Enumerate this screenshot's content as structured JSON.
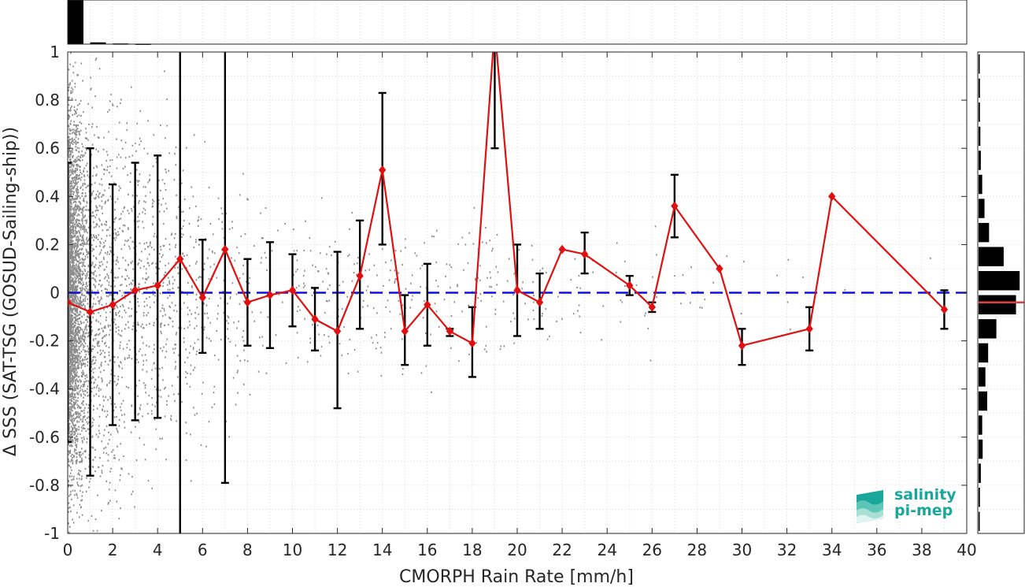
{
  "chart_data": {
    "type": "line",
    "xlabel": "CMORPH Rain Rate [mm/h]",
    "ylabel": "Δ SSS (SAT-TSG (GOSUD-Sailing-ship))",
    "xlim": [
      0,
      40
    ],
    "ylim": [
      -1,
      1
    ],
    "x_ticks": [
      "0",
      "2",
      "4",
      "6",
      "8",
      "10",
      "12",
      "14",
      "16",
      "18",
      "20",
      "22",
      "24",
      "26",
      "28",
      "30",
      "32",
      "34",
      "36",
      "38",
      "40"
    ],
    "y_ticks": [
      "-1",
      "-0.8",
      "-0.6",
      "-0.4",
      "-0.2",
      "0",
      "0.2",
      "0.4",
      "0.6",
      "0.8",
      "1"
    ],
    "grid": true,
    "reference_line": {
      "y": 0,
      "style": "dashed",
      "color": "#1010dd"
    },
    "series": [
      {
        "color": "#e01010",
        "marker": "diamond",
        "x": [
          0,
          1,
          2,
          3,
          4,
          5,
          6,
          7,
          8,
          9,
          10,
          11,
          12,
          13,
          14,
          15,
          16,
          17,
          18,
          19,
          20,
          21,
          22,
          23,
          25,
          26,
          27,
          29,
          30,
          33,
          34,
          39
        ],
        "y": [
          -0.04,
          -0.08,
          -0.05,
          0.01,
          0.03,
          0.14,
          -0.02,
          0.18,
          -0.04,
          -0.01,
          0.01,
          -0.11,
          -0.16,
          0.07,
          0.51,
          -0.16,
          -0.05,
          -0.16,
          -0.21,
          1.1,
          0.01,
          -0.04,
          0.18,
          0.16,
          0.03,
          -0.06,
          0.36,
          0.1,
          -0.22,
          -0.15,
          0.4,
          -0.07
        ],
        "err_lo": [
          -0.62,
          -0.76,
          -0.55,
          -0.53,
          -0.52,
          -1.0,
          -0.25,
          -0.79,
          -0.22,
          -0.23,
          -0.14,
          -0.24,
          -0.48,
          -0.15,
          0.2,
          -0.3,
          -0.22,
          -0.18,
          -0.35,
          0.6,
          -0.18,
          -0.15,
          0.18,
          0.08,
          -0.01,
          -0.08,
          0.23,
          0.1,
          -0.3,
          -0.24,
          0.4,
          -0.15
        ],
        "err_hi": [
          0.54,
          0.6,
          0.45,
          0.54,
          0.57,
          1.0,
          0.22,
          1.0,
          0.14,
          0.21,
          0.16,
          0.02,
          0.17,
          0.3,
          0.83,
          -0.01,
          0.12,
          -0.15,
          -0.06,
          1.0,
          0.2,
          0.08,
          0.18,
          0.25,
          0.07,
          -0.04,
          0.49,
          0.1,
          -0.15,
          -0.06,
          0.4,
          0.01
        ]
      }
    ],
    "top_histogram": {
      "bin_width": 1,
      "x": [
        0,
        1,
        2,
        3
      ],
      "relative_counts": [
        1.0,
        0.04,
        0.015,
        0.01
      ]
    },
    "right_histogram": {
      "bin_width": 0.1,
      "y": [
        0.95,
        0.85,
        0.75,
        0.65,
        0.55,
        0.45,
        0.35,
        0.25,
        0.15,
        0.05,
        -0.05,
        -0.15,
        -0.25,
        -0.35,
        -0.45,
        -0.55,
        -0.65,
        -0.75,
        -0.85,
        -0.95
      ],
      "relative_counts": [
        0.02,
        0.03,
        0.03,
        0.04,
        0.05,
        0.08,
        0.13,
        0.23,
        0.55,
        0.9,
        0.82,
        0.39,
        0.21,
        0.15,
        0.19,
        0.08,
        0.09,
        0.05,
        0.03,
        0.02
      ],
      "median_line": {
        "y": -0.04,
        "color": "#e04040"
      }
    },
    "scatter_note": "dense grey raw-sample cloud, concentrated near 0-10 mm/h"
  },
  "logo": {
    "line1": "salinity",
    "line2": "pi-mep",
    "color": "#1aa79b"
  }
}
